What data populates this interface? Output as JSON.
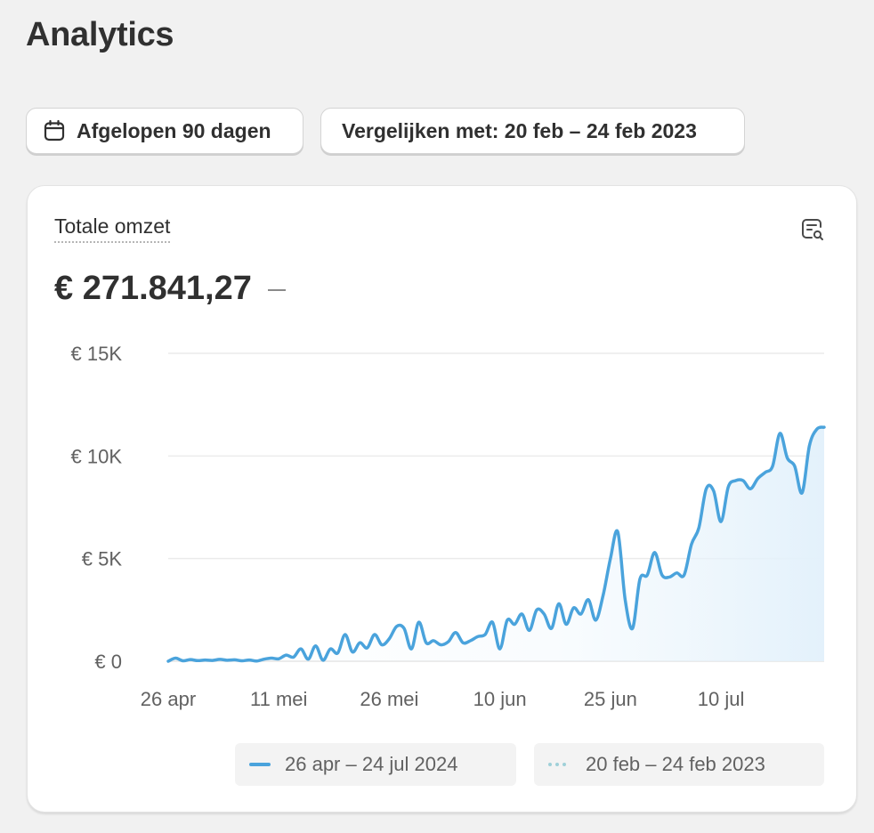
{
  "page": {
    "title": "Analytics"
  },
  "toolbar": {
    "date_range_label": "Afgelopen 90 dagen",
    "date_range_icon": "calendar-icon",
    "compare_label": "Vergelijken met: 20 feb – 24 feb 2023"
  },
  "card": {
    "metric_title": "Totale omzet",
    "metric_value": "€ 271.841,27",
    "explore_icon": "explore-chart-icon"
  },
  "colors": {
    "series_current": "#4aa3dc",
    "series_compare": "#9fd0d8",
    "gridline": "#ebebeb",
    "tick_text": "#616161"
  },
  "chart_data": {
    "type": "line",
    "title": "",
    "xlabel": "",
    "ylabel": "",
    "ylim": [
      0,
      15000
    ],
    "y_ticks": [
      "€ 15K",
      "€ 10K",
      "€ 5K",
      "€ 0"
    ],
    "y_tick_values": [
      15000,
      10000,
      5000,
      0
    ],
    "x_ticks": [
      "26 apr",
      "11 mei",
      "26 mei",
      "10 jun",
      "25 jun",
      "10 jul"
    ],
    "x_tick_days": [
      0,
      15,
      30,
      45,
      60,
      75
    ],
    "grid": true,
    "legend_position": "bottom-right",
    "series": [
      {
        "name": "26 apr – 24 jul 2024",
        "style": "solid",
        "x": [
          0,
          1,
          2,
          3,
          4,
          5,
          6,
          7,
          8,
          9,
          10,
          11,
          12,
          13,
          14,
          15,
          16,
          17,
          18,
          19,
          20,
          21,
          22,
          23,
          24,
          25,
          26,
          27,
          28,
          29,
          30,
          31,
          32,
          33,
          34,
          35,
          36,
          37,
          38,
          39,
          40,
          41,
          42,
          43,
          44,
          45,
          46,
          47,
          48,
          49,
          50,
          51,
          52,
          53,
          54,
          55,
          56,
          57,
          58,
          59,
          60,
          61,
          62,
          63,
          64,
          65,
          66,
          67,
          68,
          69,
          70,
          71,
          72,
          73,
          74,
          75,
          76,
          77,
          78,
          79,
          80,
          81,
          82,
          83,
          84,
          85,
          86,
          87,
          88,
          89
        ],
        "values": [
          0,
          150,
          20,
          80,
          30,
          60,
          40,
          90,
          50,
          70,
          20,
          60,
          10,
          100,
          150,
          120,
          300,
          200,
          600,
          100,
          750,
          50,
          600,
          400,
          1300,
          450,
          900,
          650,
          1300,
          800,
          1100,
          1700,
          1600,
          600,
          1900,
          900,
          1000,
          800,
          950,
          1400,
          900,
          1000,
          1200,
          1300,
          1900,
          600,
          2000,
          1800,
          2300,
          1500,
          2500,
          2300,
          1600,
          2800,
          1800,
          2600,
          2300,
          3000,
          2000,
          3200,
          5000,
          6300,
          3000,
          1600,
          4000,
          4200,
          5300,
          4200,
          4100,
          4300,
          4200,
          5700,
          6500,
          8400,
          8300,
          6800,
          8500,
          8800,
          8800,
          8400,
          8900,
          9200,
          9500,
          11100,
          9900,
          9500,
          8200,
          10500,
          11300,
          11400
        ]
      },
      {
        "name": "20 feb – 24 feb 2023",
        "style": "dotted",
        "x": [],
        "values": []
      }
    ]
  },
  "legend": {
    "current_label": "26 apr – 24 jul 2024",
    "compare_label": "20 feb – 24 feb 2023"
  }
}
